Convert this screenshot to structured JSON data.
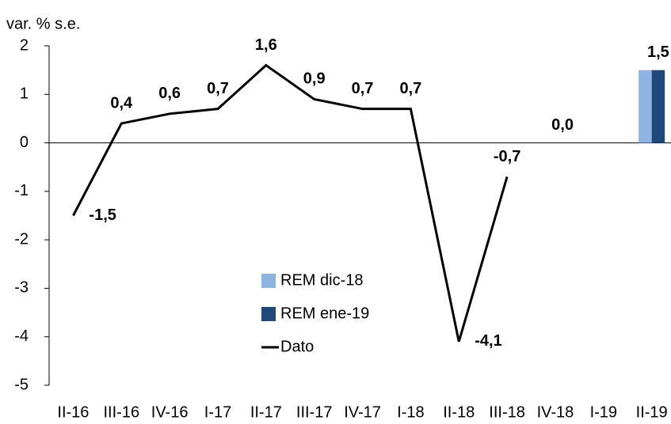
{
  "chart_data": {
    "type": "combo",
    "title": "var. % s.e.",
    "categories": [
      "II-16",
      "III-16",
      "IV-16",
      "I-17",
      "II-17",
      "III-17",
      "IV-17",
      "I-18",
      "II-18",
      "III-18",
      "IV-18",
      "I-19",
      "II-19"
    ],
    "series": [
      {
        "name": "REM dic-18",
        "type": "bar",
        "color": "#8db4e2",
        "values": [
          null,
          null,
          null,
          null,
          null,
          null,
          null,
          null,
          null,
          null,
          null,
          0.0,
          1.5
        ]
      },
      {
        "name": "REM ene-19",
        "type": "bar",
        "color": "#1f497d",
        "values": [
          null,
          null,
          null,
          null,
          null,
          null,
          null,
          null,
          null,
          null,
          null,
          0.0,
          1.5
        ],
        "value_labels": [
          null,
          null,
          null,
          null,
          null,
          null,
          null,
          null,
          null,
          null,
          null,
          "0,0",
          "1,5"
        ]
      },
      {
        "name": "Dato",
        "type": "line",
        "color": "#000000",
        "values": [
          -1.5,
          0.4,
          0.6,
          0.7,
          1.6,
          0.9,
          0.7,
          0.7,
          -4.1,
          -0.7,
          null,
          null,
          null
        ],
        "value_labels": [
          "-1,5",
          "0,4",
          "0,6",
          "0,7",
          "1,6",
          "0,9",
          "0,7",
          "0,7",
          "-4,1",
          "-0,7",
          null,
          null,
          null
        ]
      }
    ],
    "ylim": [
      -5,
      2
    ],
    "yticks": [
      -5,
      -4,
      -3,
      -2,
      -1,
      0,
      1,
      2
    ],
    "grid": false
  }
}
